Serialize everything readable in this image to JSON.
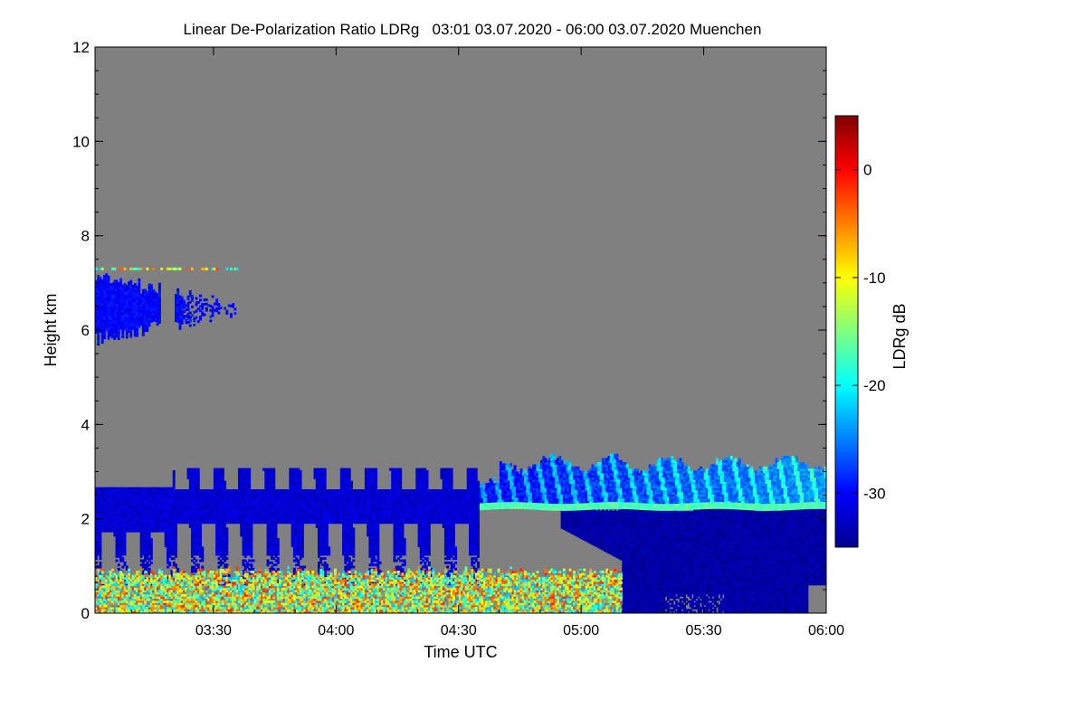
{
  "chart_data": {
    "type": "heatmap",
    "title": "Linear De-Polarization Ratio LDRg   03:01 03.07.2020 - 06:00 03.07.2020 Muenchen",
    "xlabel": "Time UTC",
    "ylabel": "Height km",
    "xlim": [
      "03:01",
      "06:00"
    ],
    "ylim": [
      0,
      12
    ],
    "x_ticks": [
      "03:30",
      "04:00",
      "04:30",
      "05:00",
      "05:30",
      "06:00"
    ],
    "y_ticks": [
      "0",
      "2",
      "4",
      "6",
      "8",
      "10",
      "12"
    ],
    "colorbar": {
      "label": "LDRg dB",
      "range": [
        -35,
        5
      ],
      "ticks": [
        "0",
        "-10",
        "-20",
        "-30"
      ],
      "colormap": [
        "#00008f",
        "#0000ff",
        "#0080ff",
        "#00ffff",
        "#80ff80",
        "#ffff00",
        "#ff8000",
        "#ff0000",
        "#800000"
      ]
    },
    "background_color": "#808080",
    "features": {
      "cirrus_layer": {
        "time_range": [
          "03:01",
          "03:36"
        ],
        "height_km": [
          5.5,
          7.5
        ],
        "ldr_db": -30
      },
      "falling_streaks": {
        "time_range": [
          "03:01",
          "04:35"
        ],
        "height_km": [
          0.6,
          3.1
        ],
        "ldr_db": -32
      },
      "melting_layer": {
        "time_range": [
          "04:35",
          "06:00"
        ],
        "height_km": [
          2.2,
          2.3
        ],
        "ldr_db": -17
      },
      "ice_above_melting_layer": {
        "time_range": [
          "04:32",
          "06:00"
        ],
        "height_km": [
          2.3,
          3.4
        ],
        "ldr_db": -24
      },
      "rain_below_melting_layer": {
        "time_range": [
          "04:55",
          "06:00"
        ],
        "height_km": [
          0,
          2.2
        ],
        "ldr_db": -34
      },
      "near_surface_noise": {
        "time_range": [
          "03:01",
          "05:10"
        ],
        "height_km": [
          0,
          0.9
        ],
        "ldr_db": -12
      }
    }
  }
}
